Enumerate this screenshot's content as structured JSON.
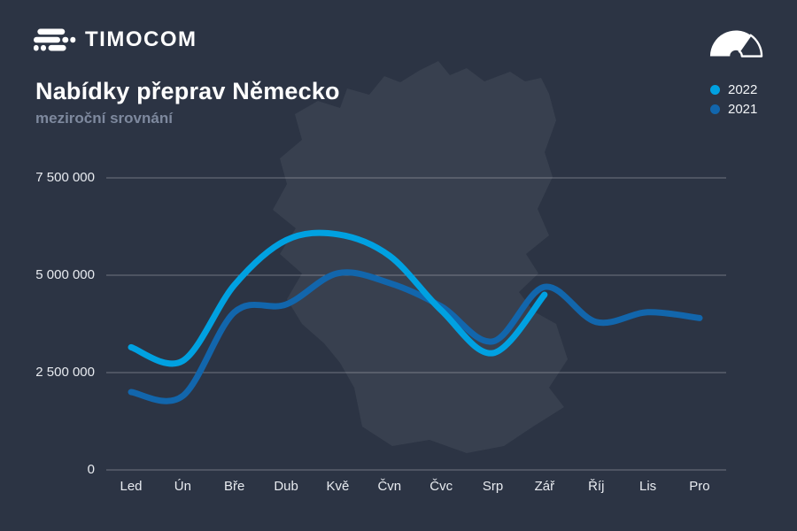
{
  "brand": {
    "logo_text": "TIMOCOM"
  },
  "header": {
    "title": "Nabídky přeprav Německo",
    "subtitle": "meziroční srovnání"
  },
  "legend": {
    "items": [
      {
        "label": "2022",
        "color": "#00a1e1"
      },
      {
        "label": "2021",
        "color": "#1266ac"
      }
    ]
  },
  "colors": {
    "background": "#2c3444",
    "map_silhouette": "#38404f",
    "gridline": "rgba(255,255,255,0.32)",
    "tick_text": "#e8ebf0",
    "title_text": "#ffffff",
    "subtitle_text": "#7e899e",
    "series_2022": "#00a1e1",
    "series_2021": "#1266ac"
  },
  "chart_data": {
    "type": "line",
    "title": "Nabídky přeprav Německo",
    "subtitle": "meziroční srovnání",
    "categories": [
      "Led",
      "Ún",
      "Bře",
      "Dub",
      "Kvě",
      "Čvn",
      "Čvc",
      "Srp",
      "Zář",
      "Říj",
      "Lis",
      "Pro"
    ],
    "y_ticks": [
      {
        "label": "0",
        "value": 0
      },
      {
        "label": "2 500 000",
        "value": 2500000
      },
      {
        "label": "5 000 000",
        "value": 5000000
      },
      {
        "label": "7 500 000",
        "value": 7500000
      }
    ],
    "ylim": [
      0,
      7500000
    ],
    "grid": "horizontal",
    "legend_position": "top-right",
    "series": [
      {
        "name": "2021",
        "color": "#1266ac",
        "values": [
          2000000,
          1900000,
          4050000,
          4250000,
          5050000,
          4800000,
          4200000,
          3300000,
          4700000,
          3800000,
          4050000,
          3900000
        ]
      },
      {
        "name": "2022",
        "color": "#00a1e1",
        "values": [
          3150000,
          2800000,
          4750000,
          5900000,
          6050000,
          5500000,
          4100000,
          3000000,
          4500000,
          null,
          null,
          null
        ]
      }
    ]
  }
}
